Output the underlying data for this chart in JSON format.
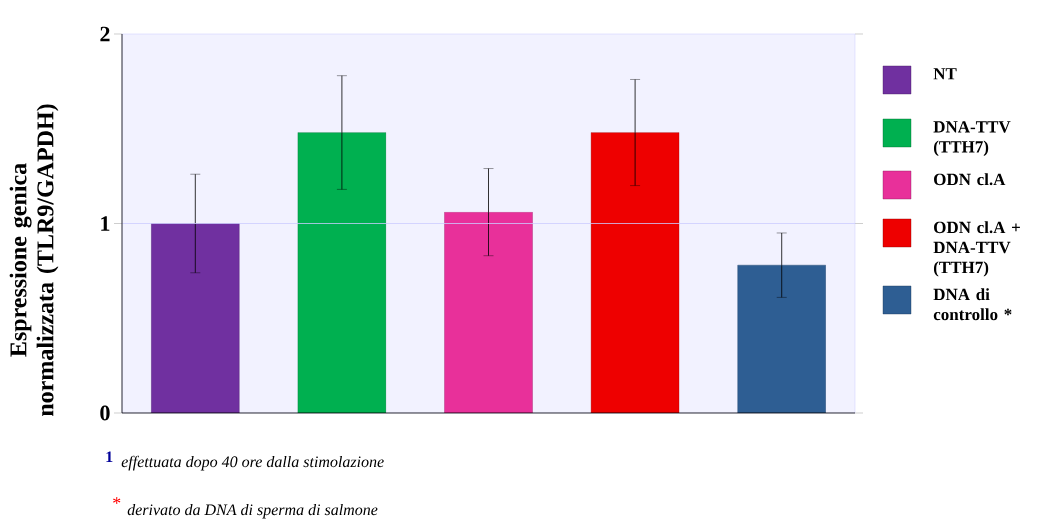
{
  "chart_data": {
    "type": "bar",
    "ylabel": "Espressione genica normalizzata (TLR9/GAPDH)",
    "categories": [
      null,
      null,
      null,
      null,
      null
    ],
    "series": [
      {
        "name": "NT",
        "color": "#7030a0",
        "values": [
          1.0,
          null,
          null,
          null,
          null
        ],
        "errors": [
          0.26,
          null,
          null,
          null,
          null
        ]
      },
      {
        "name": "DNA-TTV (TTH7)",
        "color": "#00b050",
        "values": [
          null,
          1.48,
          null,
          null,
          null
        ],
        "errors": [
          null,
          0.3,
          null,
          null,
          null
        ]
      },
      {
        "name": "ODN cl.A",
        "color": "#e8309a",
        "values": [
          null,
          null,
          1.06,
          null,
          null
        ],
        "errors": [
          null,
          null,
          0.23,
          null,
          null
        ]
      },
      {
        "name": "ODN cl.A + DNA-TTV (TTH7)",
        "color": "#ee0000",
        "values": [
          null,
          null,
          null,
          1.48,
          null
        ],
        "errors": [
          null,
          null,
          null,
          0.28,
          null
        ]
      },
      {
        "name": "DNA di controllo *",
        "color": "#2e5e93",
        "values": [
          null,
          null,
          null,
          null,
          0.78
        ],
        "errors": [
          null,
          null,
          null,
          null,
          0.17
        ]
      }
    ],
    "ylim": [
      0,
      2
    ],
    "yticks": [
      0,
      1,
      2
    ],
    "ref_lines": [
      {
        "axis": "y",
        "value": 1,
        "color": "#ccccff"
      }
    ],
    "legend": "right",
    "annotations": [
      "1",
      "effettuata dopo 40 ore dalla stimolazione",
      "*",
      "derivato da DNA di sperma di salmone"
    ]
  }
}
